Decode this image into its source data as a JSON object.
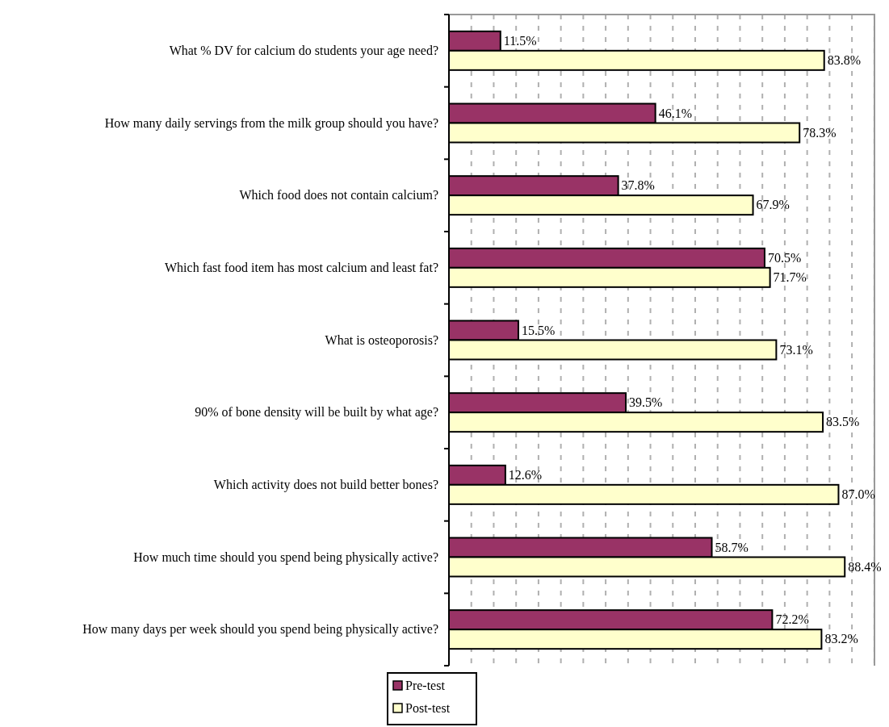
{
  "chart_data": {
    "type": "bar",
    "orientation": "horizontal",
    "categories": [
      "What % DV for calcium do students your age need?",
      "How many daily servings from the milk group should you have?",
      "Which food does not contain calcium?",
      "Which fast food item has most calcium and least fat?",
      "What is osteoporosis?",
      "90% of bone density will be built by what age?",
      "Which activity does not build better bones?",
      "How much time should you spend being physically active?",
      "How many days per week should you spend being physically active?"
    ],
    "series": [
      {
        "name": "Pre-test",
        "color": "#993366",
        "values": [
          11.5,
          46.1,
          37.8,
          70.5,
          15.5,
          39.5,
          12.6,
          58.7,
          72.2
        ],
        "value_labels": [
          "11.5%",
          "46.1%",
          "37.8%",
          "70.5%",
          "15.5%",
          "39.5%",
          "12.6%",
          "58.7%",
          "72.2%"
        ]
      },
      {
        "name": "Post-test",
        "color": "#ffffcc",
        "values": [
          83.8,
          78.3,
          67.9,
          71.7,
          73.1,
          83.5,
          87.0,
          88.4,
          83.2
        ],
        "value_labels": [
          "83.8%",
          "78.3%",
          "67.9%",
          "71.7%",
          "73.1%",
          "83.5%",
          "87.0%",
          "88.4%",
          "83.2%"
        ]
      }
    ],
    "grid": "x",
    "legend": "bottom"
  }
}
